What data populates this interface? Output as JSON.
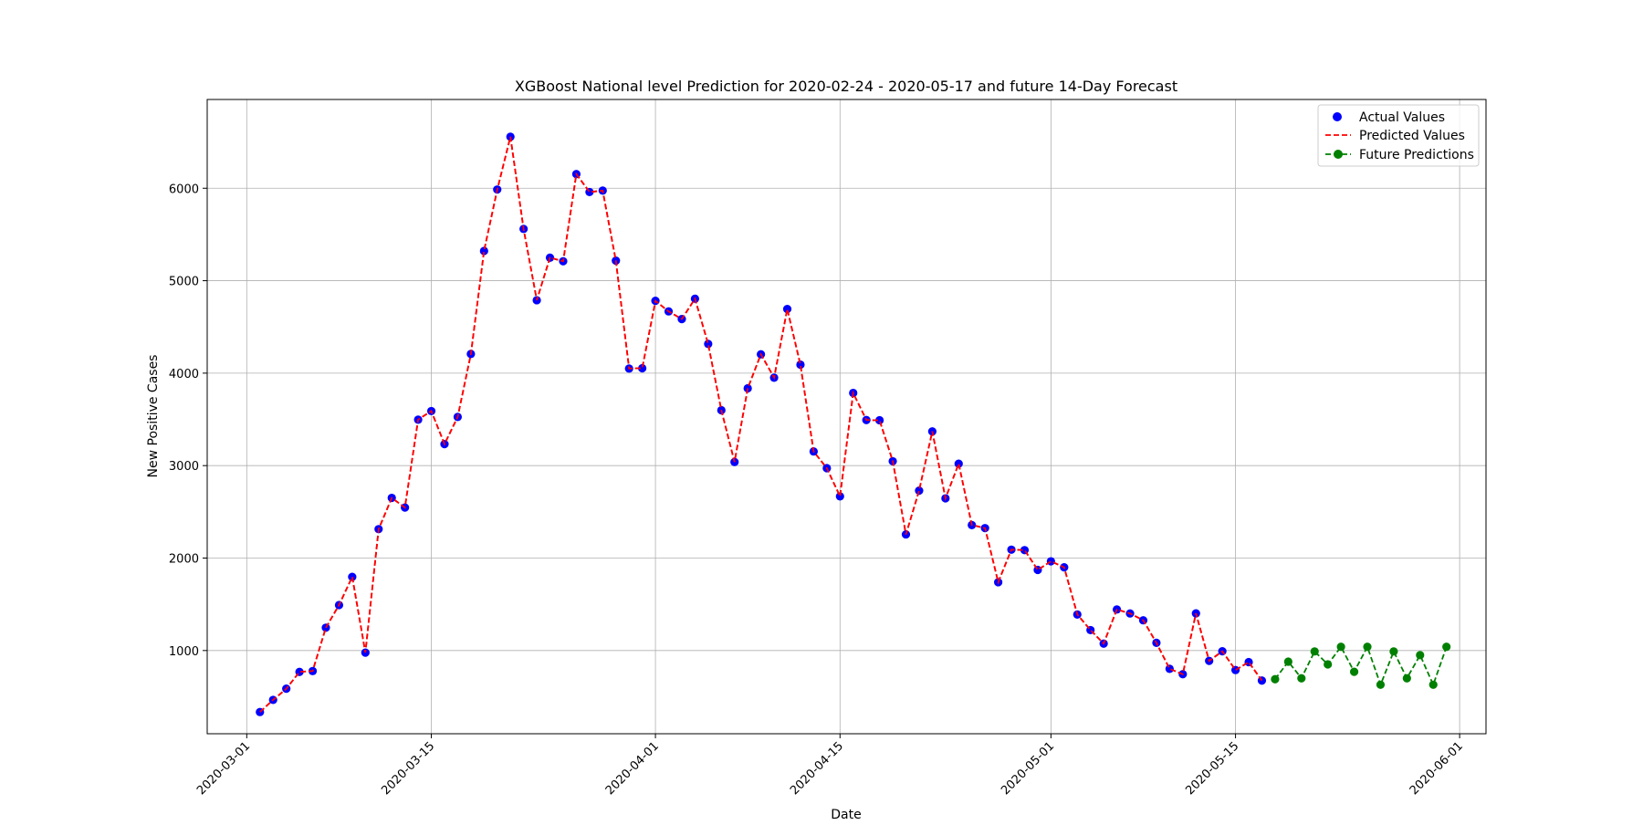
{
  "chart_data": {
    "type": "line",
    "title": "XGBoost National level Prediction for 2020-02-24 - 2020-05-17 and future 14-Day Forecast",
    "xlabel": "Date",
    "ylabel": "New Positive Cases",
    "x_start": "2020-03-02",
    "xlim": [
      "2020-02-27",
      "2020-06-03"
    ],
    "ylim": [
      100,
      6960
    ],
    "x_ticks": [
      "2020-03-01",
      "2020-03-15",
      "2020-04-01",
      "2020-04-15",
      "2020-05-01",
      "2020-05-15",
      "2020-06-01"
    ],
    "y_ticks": [
      1000,
      2000,
      3000,
      4000,
      5000,
      6000
    ],
    "grid": true,
    "legend_position": "top-right",
    "series": [
      {
        "name": "Actual Values",
        "style": "scatter",
        "color": "#0000ff",
        "values": [
          335,
          466,
          587,
          769,
          778,
          1247,
          1492,
          1797,
          977,
          2313,
          2651,
          2547,
          3497,
          3590,
          3233,
          3526,
          4207,
          5322,
          5986,
          6557,
          5560,
          4789,
          5249,
          5210,
          6153,
          5959,
          5974,
          5217,
          4050,
          4053,
          4782,
          4668,
          4585,
          4805,
          4316,
          3599,
          3039,
          3836,
          4204,
          3951,
          4694,
          4092,
          3153,
          2972,
          2667,
          3786,
          3493,
          3491,
          3047,
          2256,
          2729,
          3370,
          2646,
          3021,
          2357,
          2324,
          1739,
          2091,
          2086,
          1872,
          1965,
          1900,
          1389,
          1221,
          1075,
          1444,
          1401,
          1327,
          1083,
          802,
          744,
          1402,
          888,
          992,
          789,
          875,
          675
        ]
      },
      {
        "name": "Predicted Values",
        "style": "dashed-line",
        "color": "#ff0000",
        "values": [
          335,
          466,
          587,
          769,
          778,
          1247,
          1492,
          1797,
          977,
          2313,
          2651,
          2547,
          3497,
          3590,
          3233,
          3526,
          4207,
          5322,
          5986,
          6557,
          5560,
          4789,
          5249,
          5210,
          6153,
          5959,
          5974,
          5217,
          4050,
          4053,
          4782,
          4668,
          4585,
          4805,
          4316,
          3599,
          3039,
          3836,
          4204,
          3951,
          4694,
          4092,
          3153,
          2972,
          2667,
          3786,
          3493,
          3491,
          3047,
          2256,
          2729,
          3370,
          2646,
          3021,
          2357,
          2324,
          1739,
          2091,
          2086,
          1872,
          1965,
          1900,
          1389,
          1221,
          1075,
          1444,
          1401,
          1327,
          1083,
          802,
          744,
          1402,
          888,
          992,
          789,
          875,
          675
        ]
      },
      {
        "name": "Future Predictions",
        "style": "dashed-line-markers",
        "color": "#008000",
        "x_start": "2020-05-18",
        "values": [
          690,
          880,
          700,
          990,
          850,
          1040,
          770,
          1040,
          630,
          990,
          700,
          950,
          630,
          1040
        ]
      }
    ]
  }
}
